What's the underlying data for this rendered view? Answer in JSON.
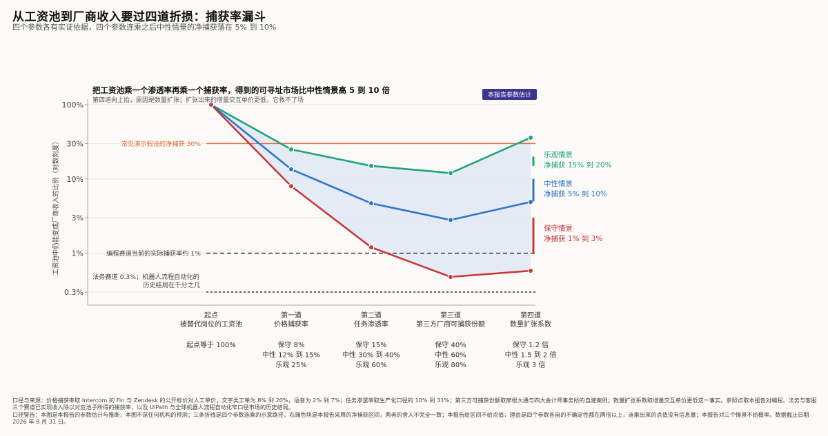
{
  "header": {
    "title": "从工资池到厂商收入要过四道折损：捕获率漏斗",
    "subtitle": "四个参数各有实证依据，四个参数连乘之后中性情景的净捕获落在 5% 到 10%"
  },
  "chart_data": {
    "type": "line",
    "title": "把工资池乘一个渗透率再乘一个捕获率，得到的可寻址市场比中性情景高 5 到 10 倍",
    "subtitle": "第四道向上抬，原因是数量扩张；扩张出来的增量交互单价更低，它救不了场",
    "badge": "本报告参数估计",
    "ylabel": "工资池中仍能变成厂商收入的比例（对数刻度）",
    "yscale": "log",
    "ylim": [
      0.2,
      100
    ],
    "yticks": [
      {
        "value": 100,
        "label": "100%"
      },
      {
        "value": 30,
        "label": "30%"
      },
      {
        "value": 10,
        "label": "10%"
      },
      {
        "value": 3,
        "label": "3%"
      },
      {
        "value": 1,
        "label": "1%"
      },
      {
        "value": 0.3,
        "label": "0.3%"
      }
    ],
    "categories": [
      {
        "name": "起点",
        "sub": "被替代岗位的工资池",
        "params": [
          "起点等于 100%"
        ]
      },
      {
        "name": "第一道",
        "sub": "价格捕获率",
        "params": [
          "保守 8%",
          "中性 12% 到 15%",
          "乐观 25%"
        ]
      },
      {
        "name": "第二道",
        "sub": "任务渗透率",
        "params": [
          "保守 15%",
          "中性 30% 到 40%",
          "乐观 60%"
        ]
      },
      {
        "name": "第三道",
        "sub": "第三方厂商可捕获份额",
        "params": [
          "保守 40%",
          "中性 60%",
          "乐观 80%"
        ]
      },
      {
        "name": "第四道",
        "sub": "数量扩张系数",
        "params": [
          "保守 1.2 倍",
          "中性 1.5 到 2 倍",
          "乐观 3 倍"
        ]
      }
    ],
    "series": [
      {
        "key": "optimistic",
        "color": "#1fa37a",
        "values": [
          100,
          25,
          15,
          12,
          36
        ]
      },
      {
        "key": "neutral",
        "color": "#2f74c9",
        "values": [
          100,
          13.5,
          4.7,
          2.8,
          4.9
        ]
      },
      {
        "key": "conservative",
        "color": "#c7373c",
        "values": [
          100,
          8,
          1.2,
          0.48,
          0.58
        ]
      }
    ],
    "reference_lines": [
      {
        "value": 30,
        "color": "#e26d3d",
        "style": "solid",
        "label": "常见演示假设的净捕获 30%"
      },
      {
        "value": 1,
        "color": "#333333",
        "style": "dashed",
        "label": "编程赛道当前的实际捕获率约 1%"
      },
      {
        "value": 0.3,
        "color": "#333333",
        "style": "dotted",
        "label_lines": [
          "法务赛道 0.3%；机器人流程自动化的",
          "历史结局在千分之几"
        ]
      }
    ],
    "ranges": [
      {
        "name": "乐观情景",
        "range_text": "净捕获 15% 到 20%",
        "low": 15,
        "high": 20,
        "color": "#1fa37a"
      },
      {
        "name": "中性情景",
        "range_text": "净捕获 5% 到 10%",
        "low": 5,
        "high": 10,
        "color": "#2f74c9"
      },
      {
        "name": "保守情景",
        "range_text": "净捕获 1% 到 3%",
        "low": 1,
        "high": 3,
        "color": "#c7373c"
      }
    ],
    "band_color": "#dfe8f3",
    "grid": true
  },
  "footer": {
    "source": "口径与来源：价格捕获率取 Intercom 的 Fin 与 Zendesk 的公开标价对人工单价，文字类工单为 8% 到 20%，语音为 2% 到 7%；任务渗透率取生产化口径的 10% 到 31%；第三方可捕获份额取摩根大通与四大会计师事务所的自建案例；数量扩张系数取增量交互单价更低这一事实。参照点取本报告对编程、法务与客服三个赛道已实现收入除以对应池子所得的捕获率，以及 UiPath 与全球机器人流程自动化窄口径市场的历史结局。",
    "warning": "口径警告：本图是本报告的参数估计与推断，本图不是任何机构的预测；三条折线是四个参数连乘的示意路径，右端色块是本报告采用的净捕获区间，两者的舍入不完全一致；本报告给区间不给点值，理由是四个参数各自的不确定性都在两倍以上，连乘出来的点值没有信息量；本报告对三个情景不给概率。数据截止日期 2026 年 8 月 31 日。"
  }
}
